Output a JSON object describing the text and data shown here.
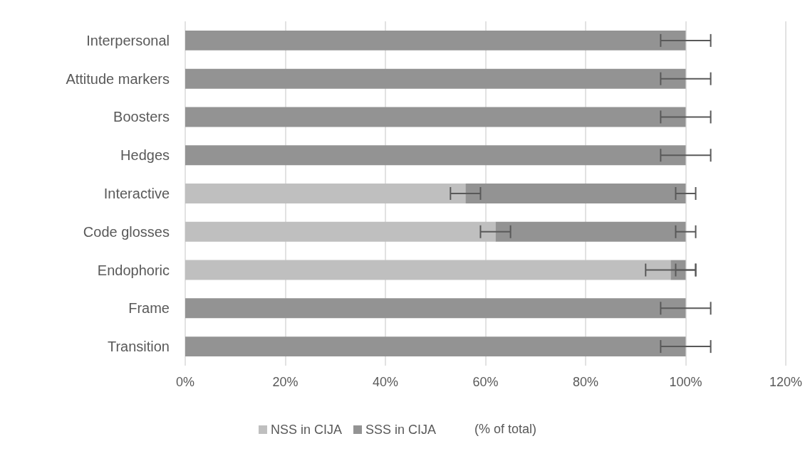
{
  "chart_data": {
    "type": "bar",
    "orientation": "horizontal",
    "stacked": true,
    "categories": [
      "Interpersonal",
      "Attitude markers",
      "Boosters",
      "Hedges",
      "Interactive",
      "Code glosses",
      "Endophoric",
      "Frame",
      "Transition"
    ],
    "series": [
      {
        "name": "NSS in CIJA",
        "color": "#bfbfbf",
        "values": [
          0,
          0,
          0,
          0,
          56,
          62,
          97,
          0,
          0
        ],
        "errors": [
          null,
          null,
          null,
          null,
          3,
          3,
          5,
          null,
          null
        ]
      },
      {
        "name": "SSS in CIJA",
        "color": "#939393",
        "values": [
          100,
          100,
          100,
          100,
          44,
          38,
          3,
          100,
          100
        ],
        "errors": [
          5,
          5,
          5,
          5,
          2,
          2,
          2,
          5,
          5
        ]
      }
    ],
    "xlim": [
      0,
      120
    ],
    "xticks": [
      {
        "value": 0,
        "label": "0%"
      },
      {
        "value": 20,
        "label": "20%"
      },
      {
        "value": 40,
        "label": "40%"
      },
      {
        "value": 60,
        "label": "60%"
      },
      {
        "value": 80,
        "label": "80%"
      },
      {
        "value": 100,
        "label": "100%"
      },
      {
        "value": 120,
        "label": "120%"
      }
    ],
    "grid": "x",
    "legend": "bottom",
    "annotations": [
      "(% of total)"
    ]
  }
}
